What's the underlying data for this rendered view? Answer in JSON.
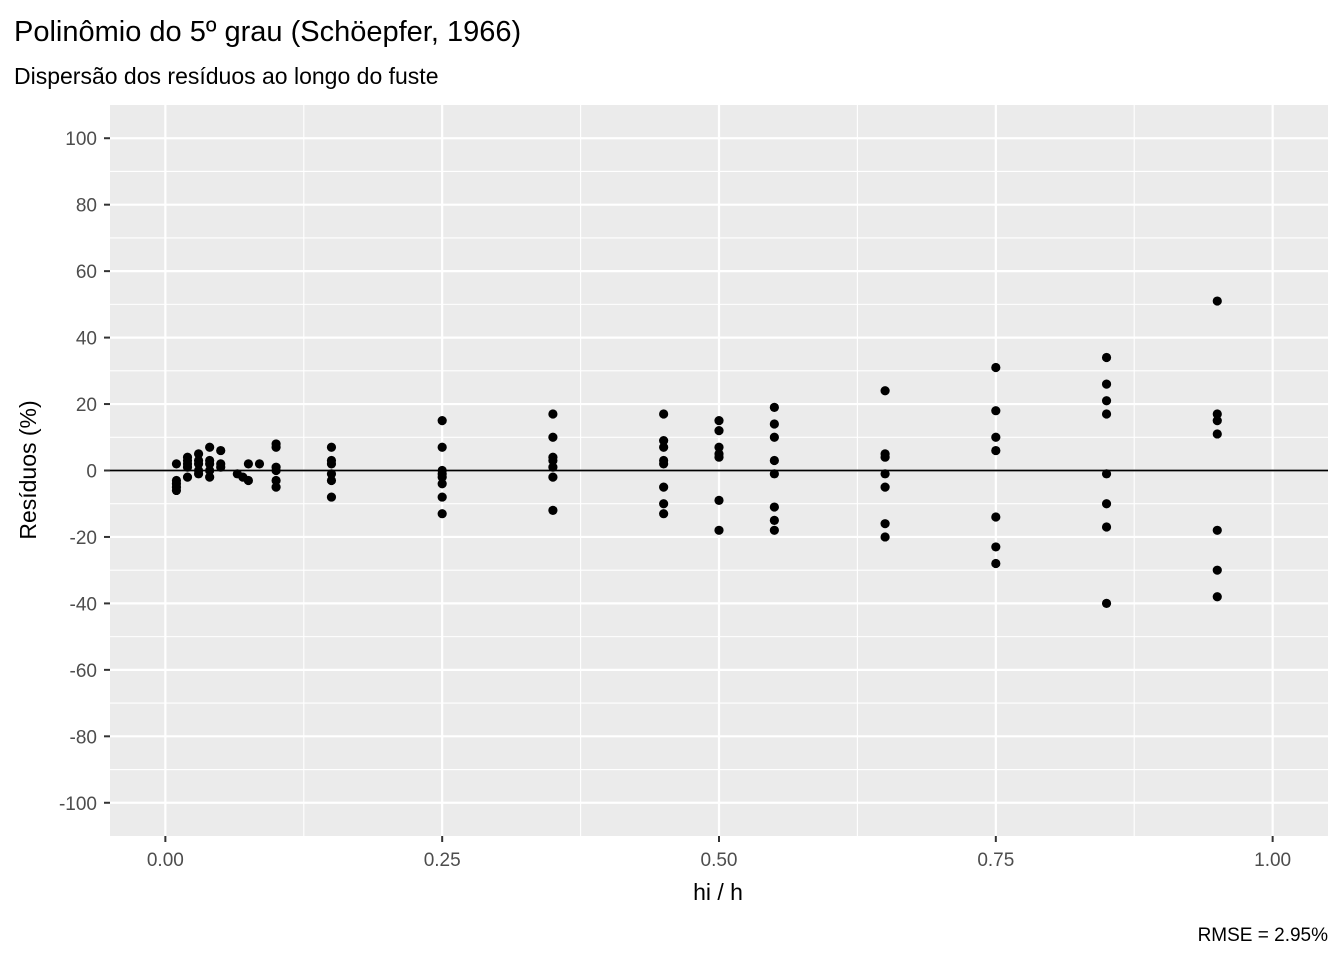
{
  "chart_data": {
    "type": "scatter",
    "title": "Polinômio do 5º grau (Schöepfer, 1966)",
    "subtitle": "Dispersão dos resíduos ao longo do fuste",
    "xlabel": "hi / h",
    "ylabel": "Resíduos (%)",
    "caption": "RMSE = 2.95%",
    "xlim": [
      -0.05,
      1.05
    ],
    "ylim": [
      -110,
      110
    ],
    "x_ticks": [
      0,
      0.25,
      0.5,
      0.75,
      1.0
    ],
    "x_tick_labels": [
      "0.00",
      "0.25",
      "0.50",
      "0.75",
      "1.00"
    ],
    "y_ticks": [
      -100,
      -80,
      -60,
      -40,
      -20,
      0,
      20,
      40,
      60,
      80,
      100
    ],
    "y_tick_labels": [
      "-100",
      "-80",
      "-60",
      "-40",
      "-20",
      "0",
      "20",
      "40",
      "60",
      "80",
      "100"
    ],
    "grid": true,
    "reference_line_y": 0,
    "colors": {
      "panel": "#ebebeb",
      "grid": "#ffffff",
      "points": "#000000",
      "reference_line": "#000000"
    },
    "points": [
      {
        "x": 0.01,
        "y": 2
      },
      {
        "x": 0.01,
        "y": -3
      },
      {
        "x": 0.01,
        "y": -4
      },
      {
        "x": 0.01,
        "y": -5
      },
      {
        "x": 0.01,
        "y": -6
      },
      {
        "x": 0.02,
        "y": 4
      },
      {
        "x": 0.02,
        "y": 3
      },
      {
        "x": 0.02,
        "y": 2
      },
      {
        "x": 0.02,
        "y": 1
      },
      {
        "x": 0.02,
        "y": -2
      },
      {
        "x": 0.03,
        "y": 5
      },
      {
        "x": 0.03,
        "y": 3
      },
      {
        "x": 0.03,
        "y": 2
      },
      {
        "x": 0.03,
        "y": 0
      },
      {
        "x": 0.03,
        "y": -1
      },
      {
        "x": 0.04,
        "y": 7
      },
      {
        "x": 0.04,
        "y": 3
      },
      {
        "x": 0.04,
        "y": 2
      },
      {
        "x": 0.04,
        "y": 0
      },
      {
        "x": 0.04,
        "y": -2
      },
      {
        "x": 0.05,
        "y": 6
      },
      {
        "x": 0.05,
        "y": 2
      },
      {
        "x": 0.05,
        "y": 1
      },
      {
        "x": 0.065,
        "y": -1
      },
      {
        "x": 0.07,
        "y": -2
      },
      {
        "x": 0.075,
        "y": 2
      },
      {
        "x": 0.075,
        "y": -3
      },
      {
        "x": 0.085,
        "y": 2
      },
      {
        "x": 0.1,
        "y": 8
      },
      {
        "x": 0.1,
        "y": 7
      },
      {
        "x": 0.1,
        "y": 1
      },
      {
        "x": 0.1,
        "y": 0
      },
      {
        "x": 0.1,
        "y": -3
      },
      {
        "x": 0.1,
        "y": -5
      },
      {
        "x": 0.15,
        "y": 7
      },
      {
        "x": 0.15,
        "y": 3
      },
      {
        "x": 0.15,
        "y": 2
      },
      {
        "x": 0.15,
        "y": -1
      },
      {
        "x": 0.15,
        "y": -3
      },
      {
        "x": 0.15,
        "y": -8
      },
      {
        "x": 0.25,
        "y": 15
      },
      {
        "x": 0.25,
        "y": 7
      },
      {
        "x": 0.25,
        "y": 0
      },
      {
        "x": 0.25,
        "y": -1
      },
      {
        "x": 0.25,
        "y": -2
      },
      {
        "x": 0.25,
        "y": -4
      },
      {
        "x": 0.25,
        "y": -8
      },
      {
        "x": 0.25,
        "y": -13
      },
      {
        "x": 0.35,
        "y": 17
      },
      {
        "x": 0.35,
        "y": 10
      },
      {
        "x": 0.35,
        "y": 4
      },
      {
        "x": 0.35,
        "y": 3
      },
      {
        "x": 0.35,
        "y": 1
      },
      {
        "x": 0.35,
        "y": -2
      },
      {
        "x": 0.35,
        "y": -12
      },
      {
        "x": 0.45,
        "y": 17
      },
      {
        "x": 0.45,
        "y": 9
      },
      {
        "x": 0.45,
        "y": 7
      },
      {
        "x": 0.45,
        "y": 3
      },
      {
        "x": 0.45,
        "y": 2
      },
      {
        "x": 0.45,
        "y": -5
      },
      {
        "x": 0.45,
        "y": -10
      },
      {
        "x": 0.45,
        "y": -13
      },
      {
        "x": 0.5,
        "y": 15
      },
      {
        "x": 0.5,
        "y": 12
      },
      {
        "x": 0.5,
        "y": 7
      },
      {
        "x": 0.5,
        "y": 5
      },
      {
        "x": 0.5,
        "y": 4
      },
      {
        "x": 0.5,
        "y": -9
      },
      {
        "x": 0.5,
        "y": -18
      },
      {
        "x": 0.55,
        "y": 19
      },
      {
        "x": 0.55,
        "y": 14
      },
      {
        "x": 0.55,
        "y": 10
      },
      {
        "x": 0.55,
        "y": 3
      },
      {
        "x": 0.55,
        "y": -1
      },
      {
        "x": 0.55,
        "y": -11
      },
      {
        "x": 0.55,
        "y": -15
      },
      {
        "x": 0.55,
        "y": -18
      },
      {
        "x": 0.65,
        "y": 24
      },
      {
        "x": 0.65,
        "y": 5
      },
      {
        "x": 0.65,
        "y": 4
      },
      {
        "x": 0.65,
        "y": -1
      },
      {
        "x": 0.65,
        "y": -5
      },
      {
        "x": 0.65,
        "y": -16
      },
      {
        "x": 0.65,
        "y": -20
      },
      {
        "x": 0.75,
        "y": 31
      },
      {
        "x": 0.75,
        "y": 18
      },
      {
        "x": 0.75,
        "y": 10
      },
      {
        "x": 0.75,
        "y": 6
      },
      {
        "x": 0.75,
        "y": -14
      },
      {
        "x": 0.75,
        "y": -23
      },
      {
        "x": 0.75,
        "y": -28
      },
      {
        "x": 0.85,
        "y": 34
      },
      {
        "x": 0.85,
        "y": 26
      },
      {
        "x": 0.85,
        "y": 21
      },
      {
        "x": 0.85,
        "y": 17
      },
      {
        "x": 0.85,
        "y": -1
      },
      {
        "x": 0.85,
        "y": -10
      },
      {
        "x": 0.85,
        "y": -17
      },
      {
        "x": 0.85,
        "y": -40
      },
      {
        "x": 0.95,
        "y": 51
      },
      {
        "x": 0.95,
        "y": 17
      },
      {
        "x": 0.95,
        "y": 15
      },
      {
        "x": 0.95,
        "y": 11
      },
      {
        "x": 0.95,
        "y": -18
      },
      {
        "x": 0.95,
        "y": -30
      },
      {
        "x": 0.95,
        "y": -38
      }
    ]
  }
}
